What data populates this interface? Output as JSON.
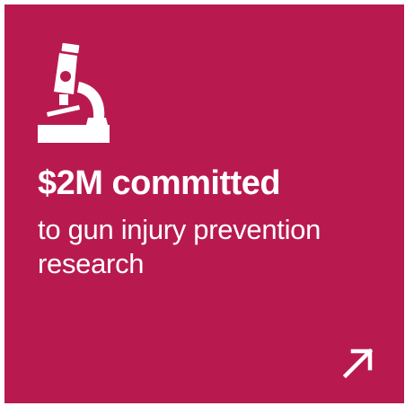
{
  "card": {
    "background_color": "#b81a50",
    "icon": "microscope-icon",
    "headline": "$2M committed",
    "subtext": "to gun injury prevention research",
    "link_icon": "arrow-up-right-icon"
  }
}
